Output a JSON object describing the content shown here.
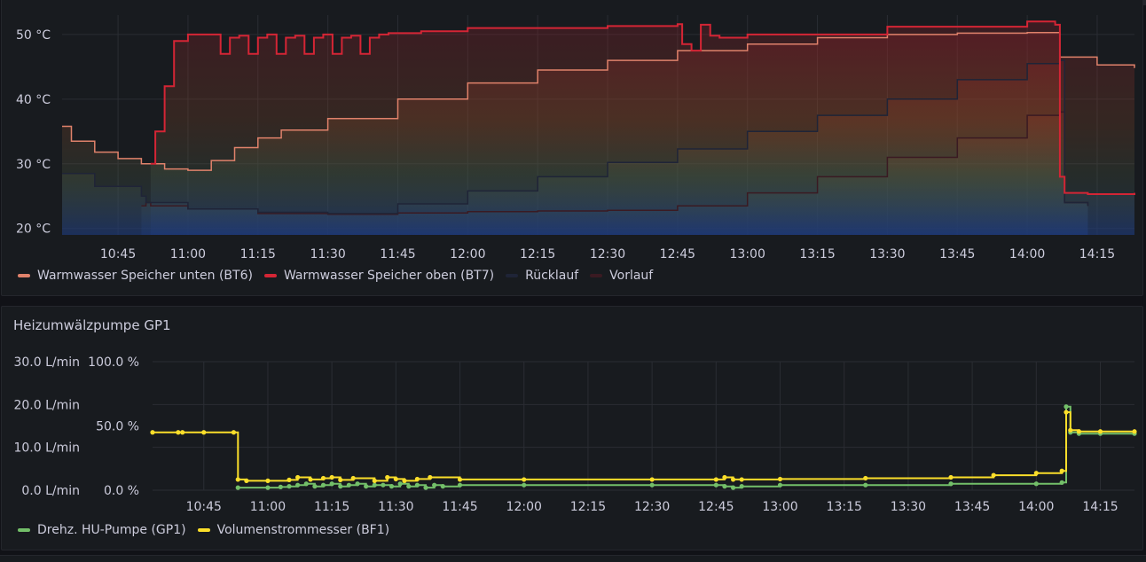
{
  "colors": {
    "bt6": "#e0826b",
    "bt7": "#d42535",
    "ruecklauf": "#1f2437",
    "vorlauf": "#3a1a22",
    "gp1": "#73bf69",
    "bf1": "#fade2a",
    "grid": "#2a2d33",
    "text": "#ccccdc"
  },
  "panel1": {
    "title": "",
    "legend": [
      {
        "key": "bt6",
        "label": "Warmwasser Speicher unten (BT6)",
        "color": "#e0826b"
      },
      {
        "key": "bt7",
        "label": "Warmwasser Speicher oben (BT7)",
        "color": "#d42535"
      },
      {
        "key": "ruecklauf",
        "label": "Rücklauf",
        "color": "#1f2437"
      },
      {
        "key": "vorlauf",
        "label": "Vorlauf",
        "color": "#3a1a22"
      }
    ]
  },
  "panel2": {
    "title": "Heizumwälzpumpe GP1",
    "legend": [
      {
        "key": "gp1",
        "label": "Drehz. HU-Pumpe (GP1)",
        "color": "#73bf69"
      },
      {
        "key": "bf1",
        "label": "Volumenstrommesser (BF1)",
        "color": "#fade2a"
      }
    ]
  },
  "chart_data": [
    {
      "type": "line",
      "title": "",
      "x_unit": "time",
      "xlim": [
        "10:33",
        "14:23"
      ],
      "x_ticks": [
        "10:45",
        "11:00",
        "11:15",
        "11:30",
        "11:45",
        "12:00",
        "12:15",
        "12:30",
        "12:45",
        "13:00",
        "13:15",
        "13:30",
        "13:45",
        "14:00",
        "14:15"
      ],
      "ylim": [
        19,
        53
      ],
      "y_ticks": [
        {
          "value": 20,
          "label": "20 °C"
        },
        {
          "value": 30,
          "label": "30 °C"
        },
        {
          "value": 40,
          "label": "40 °C"
        },
        {
          "value": 50,
          "label": "50 °C"
        }
      ],
      "series": [
        {
          "name": "Vorlauf",
          "key": "vorlauf",
          "x": [
            "10:50",
            "10:51",
            "10:52",
            "11:00",
            "11:15",
            "11:30",
            "11:45",
            "12:00",
            "12:15",
            "12:30",
            "12:45",
            "13:00",
            "13:15",
            "13:30",
            "13:45",
            "14:00",
            "14:07",
            "14:08",
            "14:13"
          ],
          "y": [
            23.5,
            24,
            23.5,
            23,
            22.3,
            22.2,
            22.4,
            22.6,
            22.7,
            22.8,
            23.5,
            25.5,
            28,
            31,
            34,
            37.5,
            38,
            24,
            23.5
          ]
        },
        {
          "name": "Rücklauf",
          "key": "ruecklauf",
          "x": [
            "10:33",
            "10:40",
            "10:50",
            "10:51",
            "11:00",
            "11:15",
            "11:30",
            "11:45",
            "12:00",
            "12:15",
            "12:30",
            "12:45",
            "13:00",
            "13:15",
            "13:30",
            "13:45",
            "14:00",
            "14:07",
            "14:08",
            "14:13"
          ],
          "y": [
            28.5,
            26.5,
            25,
            24,
            23,
            22.5,
            22.3,
            23.8,
            25.8,
            28,
            30.2,
            32.3,
            35,
            37.5,
            40,
            43,
            45.5,
            46,
            24,
            23.5
          ]
        },
        {
          "name": "Warmwasser Speicher unten (BT6)",
          "key": "bt6",
          "x": [
            "10:33",
            "10:35",
            "10:40",
            "10:45",
            "10:50",
            "10:55",
            "11:00",
            "11:05",
            "11:10",
            "11:15",
            "11:20",
            "11:30",
            "11:45",
            "12:00",
            "12:15",
            "12:30",
            "12:45",
            "13:00",
            "13:15",
            "13:30",
            "13:45",
            "14:00",
            "14:07",
            "14:15",
            "14:23"
          ],
          "y": [
            35.8,
            33.5,
            31.8,
            30.8,
            30,
            29.2,
            29,
            30.5,
            32.5,
            34,
            35.2,
            37,
            40,
            42.5,
            44.5,
            46,
            47.5,
            48.5,
            49.5,
            50,
            50.2,
            50.3,
            46.5,
            45.3,
            44.8
          ]
        },
        {
          "name": "Warmwasser Speicher oben (BT7)",
          "key": "bt7",
          "x": [
            "10:52",
            "10:53",
            "10:55",
            "10:57",
            "11:00",
            "11:05",
            "11:07",
            "11:09",
            "11:11",
            "11:13",
            "11:15",
            "11:17",
            "11:19",
            "11:21",
            "11:23",
            "11:25",
            "11:27",
            "11:29",
            "11:31",
            "11:33",
            "11:35",
            "11:37",
            "11:39",
            "11:41",
            "11:43",
            "11:50",
            "12:00",
            "12:30",
            "12:45",
            "12:46",
            "12:48",
            "12:50",
            "12:52",
            "12:54",
            "13:00",
            "13:30",
            "14:00",
            "14:06",
            "14:07",
            "14:08",
            "14:13",
            "14:23"
          ],
          "y": [
            30,
            35,
            42,
            49,
            50,
            50,
            47,
            49.5,
            49.8,
            47,
            49.5,
            50,
            47,
            49.5,
            49.8,
            47,
            49.5,
            50,
            47,
            49.5,
            49.8,
            47,
            49.5,
            50,
            50.2,
            50.5,
            51,
            51.3,
            51.6,
            48.5,
            47.5,
            51.5,
            49.8,
            49.5,
            50,
            51.2,
            52,
            51.5,
            28,
            25.5,
            25.3,
            25.5
          ]
        }
      ]
    },
    {
      "type": "line",
      "title": "Heizumwälzpumpe GP1",
      "x_unit": "time",
      "xlim": [
        "10:33",
        "14:23"
      ],
      "x_ticks": [
        "10:45",
        "11:00",
        "11:15",
        "11:30",
        "11:45",
        "12:00",
        "12:15",
        "12:30",
        "12:45",
        "13:00",
        "13:15",
        "13:30",
        "13:45",
        "14:00",
        "14:15"
      ],
      "y_left": {
        "unit": "L/min",
        "ylim": [
          0,
          30
        ],
        "ticks": [
          "0.0 L/min",
          "10.0 L/min",
          "20.0 L/min",
          "30.0 L/min"
        ]
      },
      "y_right": {
        "unit": "%",
        "ylim": [
          0,
          100
        ],
        "ticks": [
          "0.0 %",
          "50.0 %",
          "100.0 %"
        ]
      },
      "series": [
        {
          "name": "Drehz. HU-Pumpe (GP1)",
          "key": "gp1",
          "axis": "percent",
          "x": [
            "10:53",
            "11:00",
            "11:03",
            "11:05",
            "11:07",
            "11:09",
            "11:11",
            "11:13",
            "11:15",
            "11:17",
            "11:19",
            "11:21",
            "11:23",
            "11:25",
            "11:27",
            "11:29",
            "11:31",
            "11:33",
            "11:35",
            "11:37",
            "11:39",
            "11:41",
            "11:45",
            "12:00",
            "12:30",
            "12:45",
            "12:47",
            "12:49",
            "12:51",
            "13:00",
            "13:20",
            "13:40",
            "14:00",
            "14:06",
            "14:07",
            "14:08",
            "14:10",
            "14:15",
            "14:23"
          ],
          "y": [
            2,
            2,
            2.5,
            3,
            4,
            5,
            3,
            4,
            5,
            3,
            4,
            5,
            3,
            4,
            4,
            3,
            5,
            3,
            4,
            2,
            4,
            3,
            4,
            4,
            4,
            4,
            3,
            2,
            3,
            4,
            4,
            5,
            5,
            6,
            65,
            45,
            44,
            44,
            44
          ]
        },
        {
          "name": "Volumenstrommesser (BF1)",
          "key": "bf1",
          "axis": "lmin",
          "x": [
            "10:33",
            "10:39",
            "10:40",
            "10:45",
            "10:52",
            "10:53",
            "10:55",
            "11:00",
            "11:05",
            "11:07",
            "11:10",
            "11:13",
            "11:15",
            "11:17",
            "11:20",
            "11:25",
            "11:28",
            "11:30",
            "11:32",
            "11:35",
            "11:38",
            "11:45",
            "12:00",
            "12:30",
            "12:45",
            "12:47",
            "12:49",
            "12:51",
            "13:00",
            "13:20",
            "13:40",
            "13:50",
            "14:00",
            "14:06",
            "14:07",
            "14:08",
            "14:10",
            "14:15",
            "14:23"
          ],
          "y": [
            13.5,
            13.5,
            13.5,
            13.5,
            13.5,
            2.5,
            2.2,
            2.2,
            2.4,
            3,
            2.5,
            2.8,
            3,
            2.4,
            2.8,
            2.2,
            3,
            2.6,
            2.2,
            2.6,
            3,
            2.5,
            2.5,
            2.5,
            2.5,
            3,
            2.5,
            2.5,
            2.6,
            2.8,
            3,
            3.5,
            4,
            4.5,
            18.2,
            14,
            13.7,
            13.7,
            13.7
          ]
        }
      ]
    }
  ]
}
